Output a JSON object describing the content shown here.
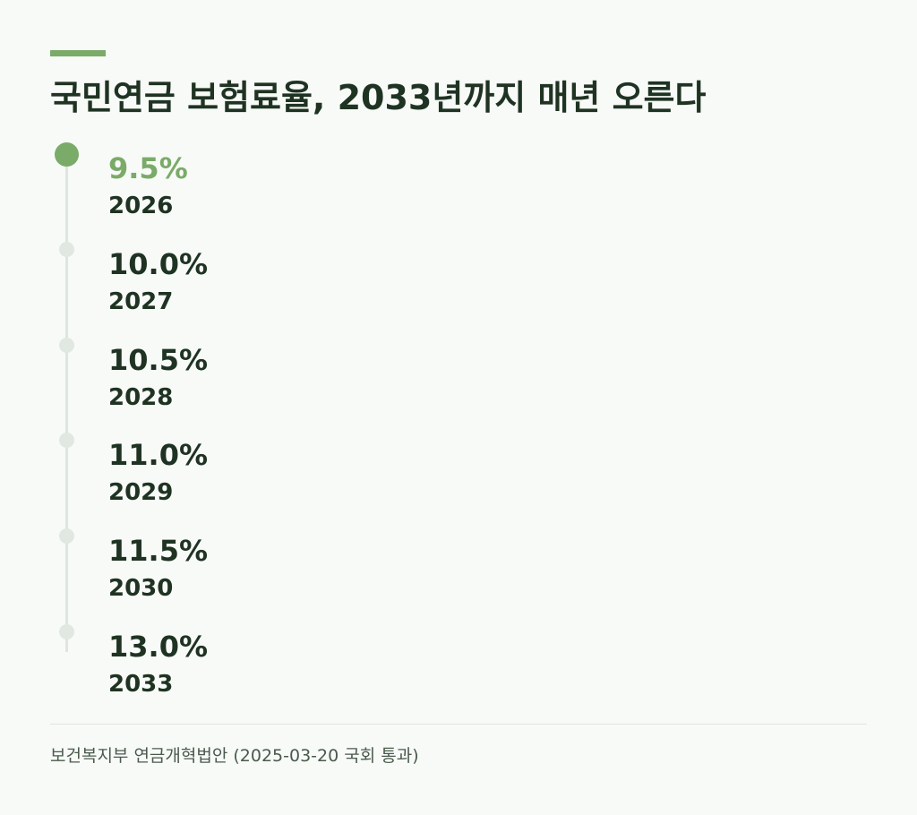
{
  "title": "국민연금 보험료율, 2033년까지 매년 오른다",
  "source": "보건복지부 연금개혁법안 (2025-03-20 국회 통과)",
  "colors": {
    "accent": "#7aab68",
    "text": "#1f3322",
    "dot_inactive": "#e0e8e1",
    "background": "#f8faf8"
  },
  "chart_data": {
    "type": "table",
    "title": "국민연금 보험료율, 2033년까지 매년 오른다",
    "highlight_index": 0,
    "rows": [
      {
        "year": "2026",
        "rate": 9.5,
        "label": "9.5%"
      },
      {
        "year": "2027",
        "rate": 10.0,
        "label": "10.0%"
      },
      {
        "year": "2028",
        "rate": 10.5,
        "label": "10.5%"
      },
      {
        "year": "2029",
        "rate": 11.0,
        "label": "11.0%"
      },
      {
        "year": "2030",
        "rate": 11.5,
        "label": "11.5%"
      },
      {
        "year": "2033",
        "rate": 13.0,
        "label": "13.0%"
      }
    ]
  }
}
